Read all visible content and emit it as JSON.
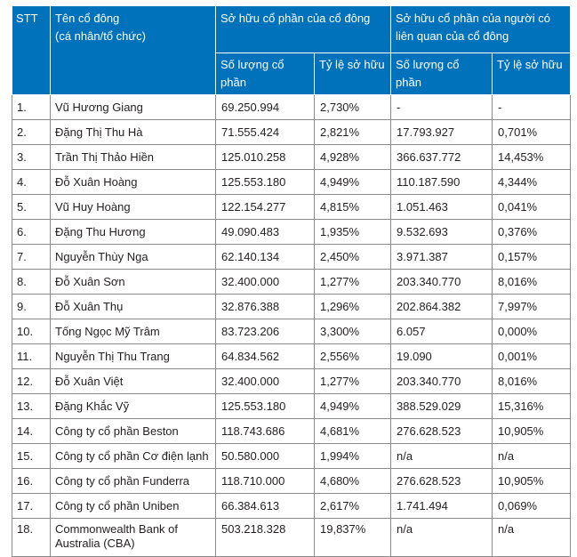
{
  "header": {
    "stt": "STT",
    "name_line1": "Tên cổ đông",
    "name_line2": "(cá nhân/tổ chức)",
    "own_group": "Sở hữu cổ phần của cổ đông",
    "related_group": "Sở hữu cổ phần của người có liên quan của cổ đông",
    "qty": "Số lượng cổ phần",
    "ratio": "Tỷ lệ sở hữu",
    "qty2": "Số lượng cổ phần",
    "ratio2": "Tỷ lệ sở hữu"
  },
  "rows": [
    {
      "stt": "1.",
      "name": "Vũ Hương Giang",
      "qty": "69.250.994",
      "ratio": "2,730%",
      "rel_qty": "-",
      "rel_ratio": "-"
    },
    {
      "stt": "2.",
      "name": "Đặng Thị Thu Hà",
      "qty": "71.555.424",
      "ratio": "2,821%",
      "rel_qty": "17.793.927",
      "rel_ratio": "0,701%"
    },
    {
      "stt": "3.",
      "name": "Trần Thị Thảo Hiền",
      "qty": "125.010.258",
      "ratio": "4,928%",
      "rel_qty": "366.637.772",
      "rel_ratio": "14,453%"
    },
    {
      "stt": "4.",
      "name": "Đỗ Xuân Hoàng",
      "qty": "125.553.180",
      "ratio": "4,949%",
      "rel_qty": "110.187.590",
      "rel_ratio": "4,344%"
    },
    {
      "stt": "5.",
      "name": "Vũ Huy Hoàng",
      "qty": "122.154.277",
      "ratio": "4,815%",
      "rel_qty": "1.051.463",
      "rel_ratio": "0,041%"
    },
    {
      "stt": "6.",
      "name": "Đặng Thu Hương",
      "qty": "49.090.483",
      "ratio": "1,935%",
      "rel_qty": "9.532.693",
      "rel_ratio": "0,376%"
    },
    {
      "stt": "7.",
      "name": "Nguyễn Thùy Nga",
      "qty": "62.140.134",
      "ratio": "2,450%",
      "rel_qty": "3.971.387",
      "rel_ratio": "0,157%"
    },
    {
      "stt": "8.",
      "name": "Đỗ Xuân Sơn",
      "qty": "32.400.000",
      "ratio": "1,277%",
      "rel_qty": "203.340.770",
      "rel_ratio": "8,016%"
    },
    {
      "stt": "9.",
      "name": "Đỗ Xuân Thụ",
      "qty": "32.876.388",
      "ratio": "1,296%",
      "rel_qty": "202.864.382",
      "rel_ratio": "7,997%"
    },
    {
      "stt": "10.",
      "name": "Tống Ngọc Mỹ Trâm",
      "qty": "83.723.206",
      "ratio": "3,300%",
      "rel_qty": "6.057",
      "rel_ratio": "0,000%"
    },
    {
      "stt": "11.",
      "name": "Nguyễn Thị Thu Trang",
      "qty": "64.834.562",
      "ratio": "2,556%",
      "rel_qty": "19.090",
      "rel_ratio": "0,001%"
    },
    {
      "stt": "12.",
      "name": "Đỗ Xuân Việt",
      "qty": "32.400.000",
      "ratio": "1,277%",
      "rel_qty": "203.340.770",
      "rel_ratio": "8,016%"
    },
    {
      "stt": "13.",
      "name": "Đặng Khắc Vỹ",
      "qty": "125.553.180",
      "ratio": "4,949%",
      "rel_qty": "388.529.029",
      "rel_ratio": "15,316%"
    },
    {
      "stt": "14.",
      "name": "Công ty cổ phần Beston",
      "qty": "118.743.686",
      "ratio": "4,681%",
      "rel_qty": "276.628.523",
      "rel_ratio": "10,905%"
    },
    {
      "stt": "15.",
      "name": "Công ty cổ phần Cơ điện lạnh",
      "qty": "50.580.000",
      "ratio": "1,994%",
      "rel_qty": "n/a",
      "rel_ratio": "n/a"
    },
    {
      "stt": "16.",
      "name": "Công ty cổ phần Funderra",
      "qty": "118.710.000",
      "ratio": "4,680%",
      "rel_qty": "276.628.523",
      "rel_ratio": "10,905%"
    },
    {
      "stt": "17.",
      "name": "Công ty cổ phần Uniben",
      "qty": "66.384.613",
      "ratio": "2,617%",
      "rel_qty": "1.741.494",
      "rel_ratio": "0,069%"
    },
    {
      "stt": "18.",
      "name": "Commonwealth Bank of Australia (CBA)",
      "qty": "503.218.328",
      "ratio": "19,837%",
      "rel_qty": "n/a",
      "rel_ratio": "n/a"
    }
  ]
}
